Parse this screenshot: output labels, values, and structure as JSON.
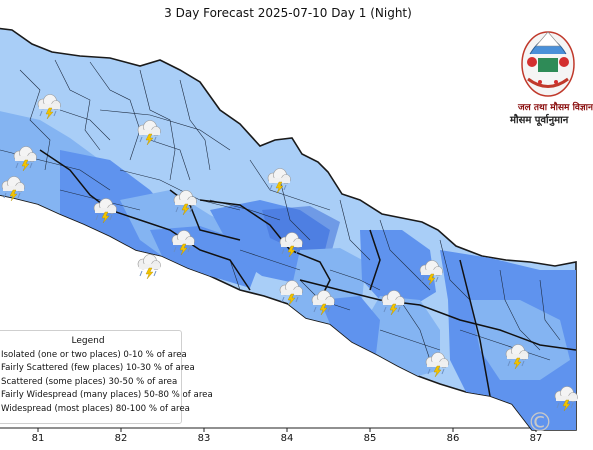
{
  "title": "3 Day Forecast 2025-07-10 Day 1 (Night)",
  "x_ticks": [
    "81",
    "82",
    "83",
    "84",
    "85",
    "86",
    "87"
  ],
  "legend": {
    "title": "Legend",
    "items": [
      {
        "label": "Isolated (one or two places)  0-10 % of area",
        "color": "#cfe3fa"
      },
      {
        "label": "Fairly Scattered (few places) 10-30 % of area",
        "color": "#a9cef7"
      },
      {
        "label": "Scattered (some places) 30-50  % of area",
        "color": "#84b4f2"
      },
      {
        "label": "Fairly Widespread (many places) 50-80 % of area",
        "color": "#5f93ee"
      },
      {
        "label": "Widespread (most places) 80-100 % of area",
        "color": "#3f6fd8"
      }
    ]
  },
  "organization": {
    "line1": "जल तथा मौसम विज्ञान",
    "line2": "मौसम पूर्वानुमान"
  },
  "weather_icon": "thunder-cloud-rain-icon",
  "emblem_icon": "nepal-emblem-icon",
  "watermark": "©"
}
